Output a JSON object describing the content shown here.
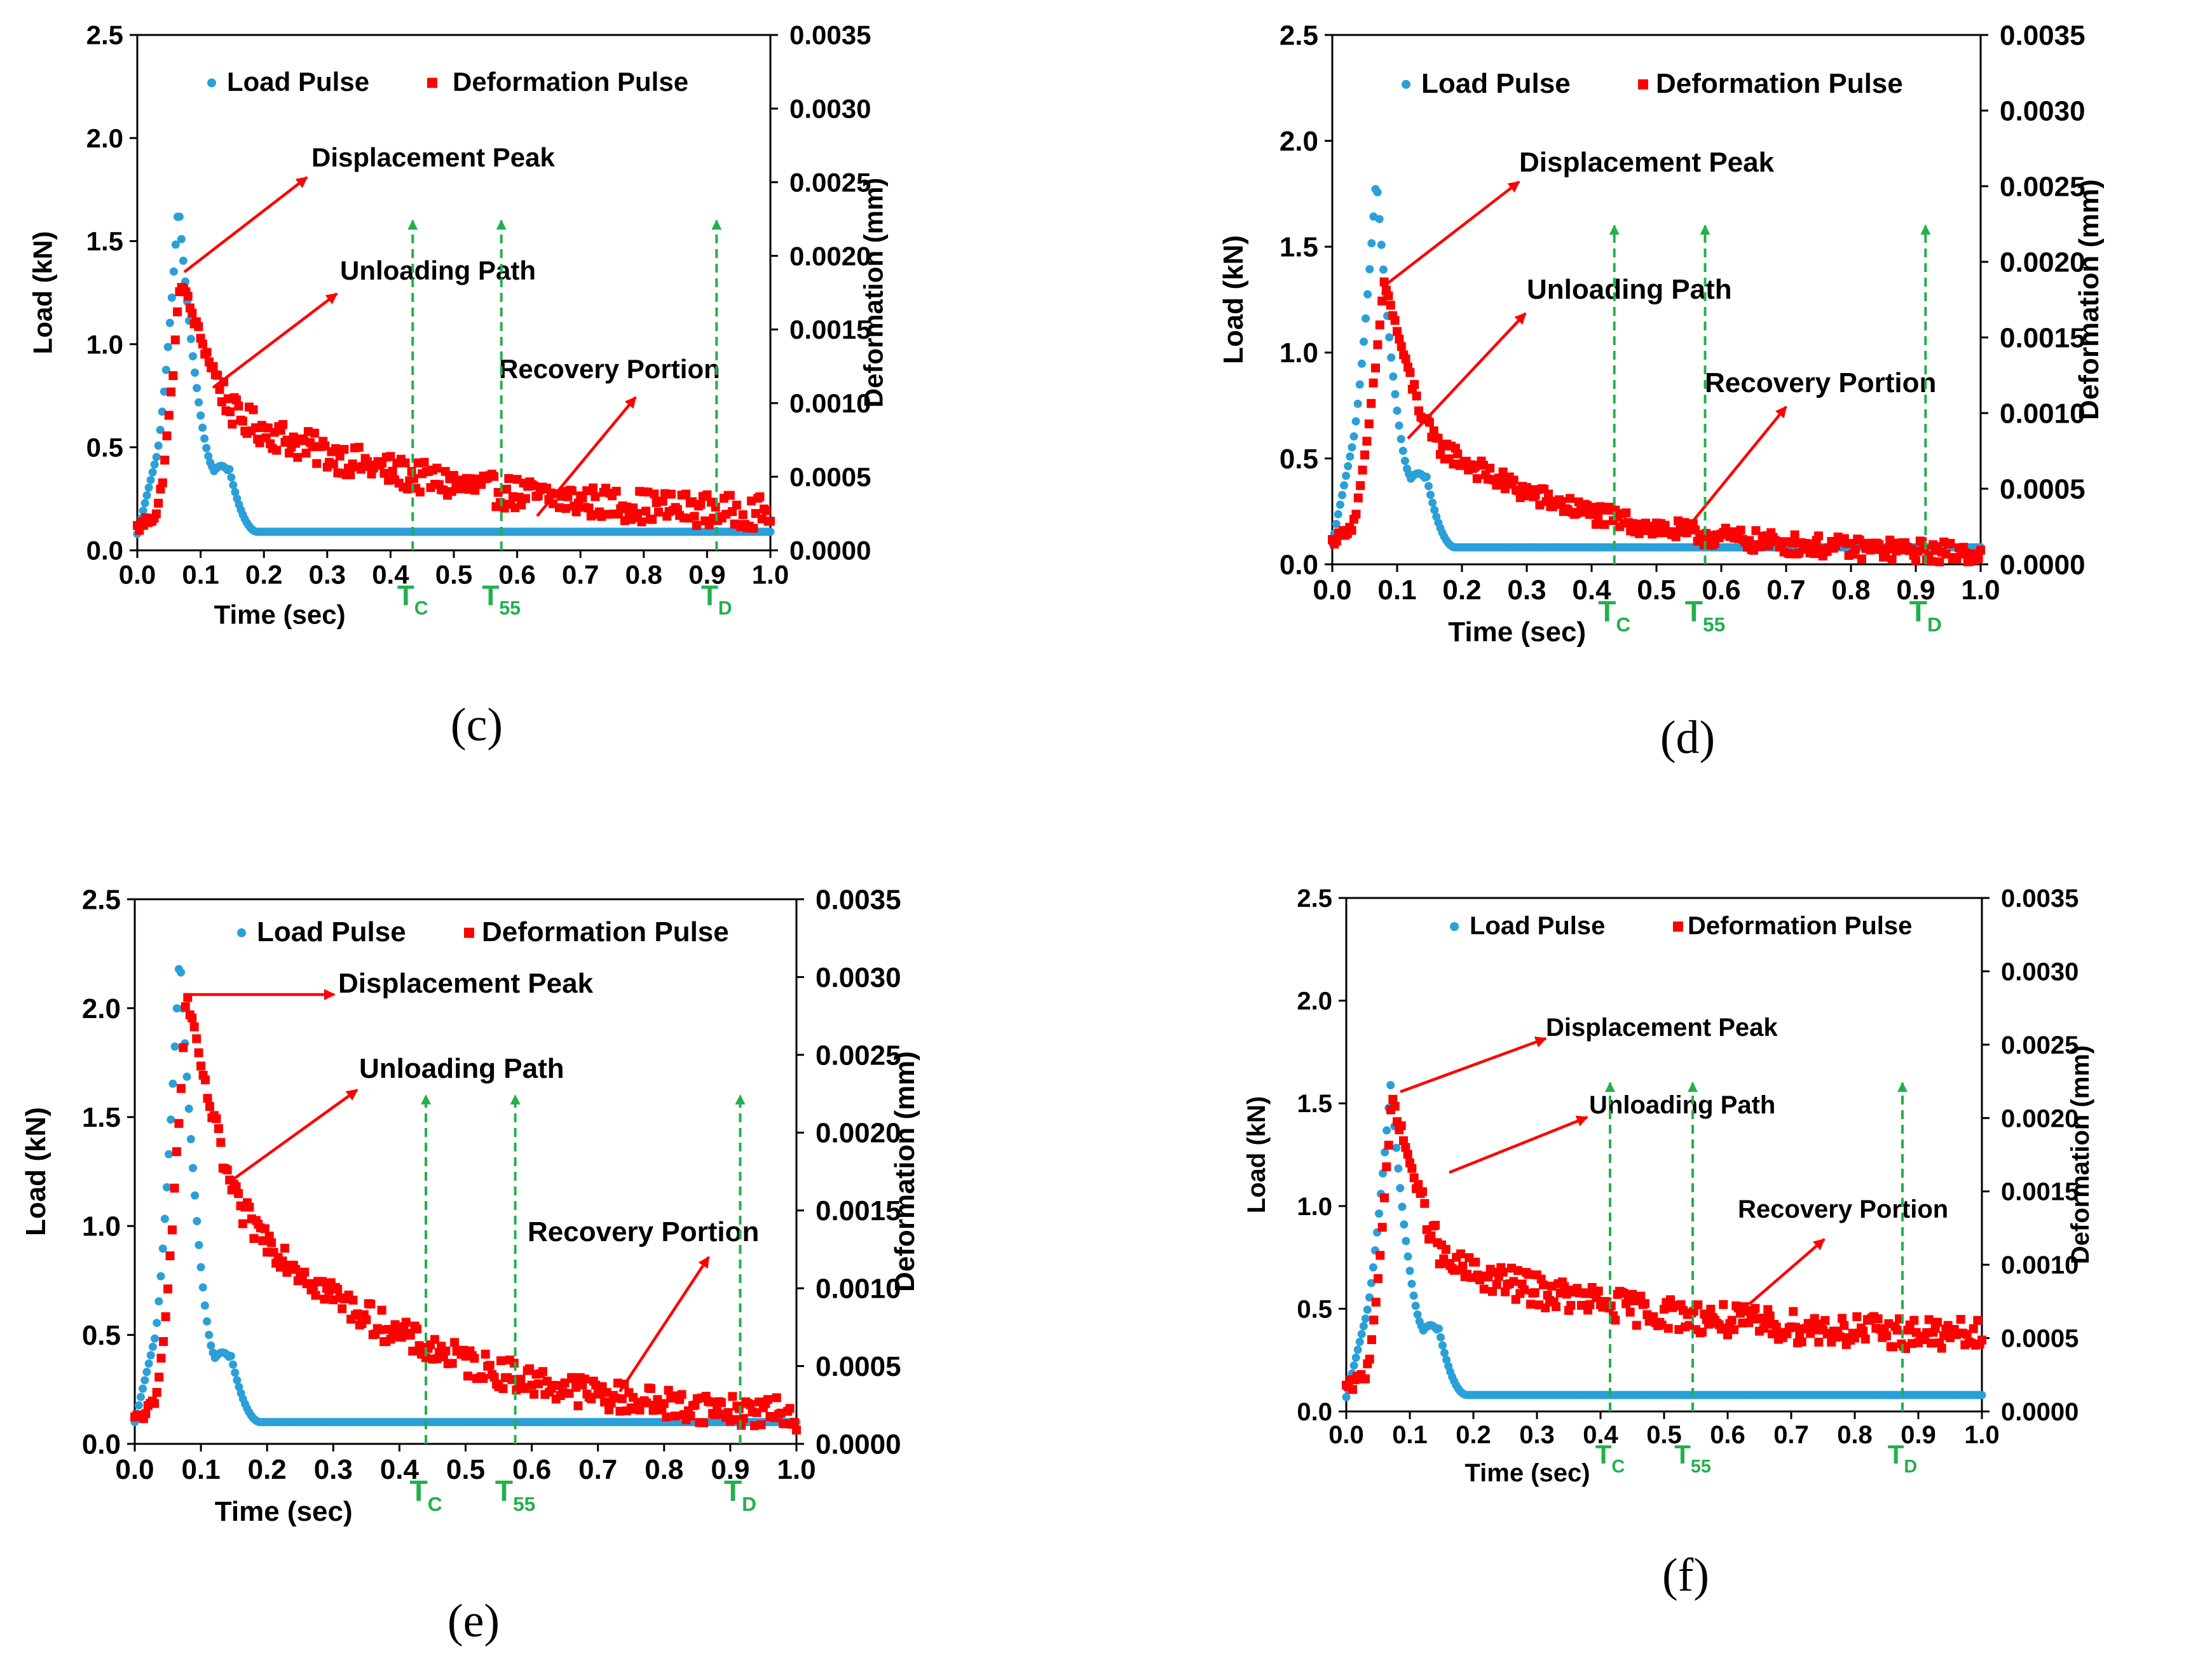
{
  "colors": {
    "load": "#2a9fd8",
    "deformation": "#ff0000",
    "marker": "#22b04b",
    "arrow": "#ff0000",
    "axis": "#000000"
  },
  "legend": {
    "load": "Load Pulse",
    "deformation": "Deformation Pulse"
  },
  "chart_data": [
    {
      "type": "scatter",
      "caption": "(c)",
      "xlabel": "Time (sec)",
      "ylabel": "Load (kN)",
      "y2label": "Deformation (mm)",
      "xlim": [
        0,
        1
      ],
      "ylim": [
        0,
        2.5
      ],
      "y2lim": [
        0,
        0.0035
      ],
      "xticks": [
        "0.0",
        "0.1",
        "0.2",
        "0.3",
        "0.4",
        "0.5",
        "0.6",
        "0.7",
        "0.8",
        "0.9",
        "1.0"
      ],
      "yticks": [
        "0.0",
        "0.5",
        "1.0",
        "1.5",
        "2.0",
        "2.5"
      ],
      "y2ticks": [
        "0.0000",
        "0.0005",
        "0.0010",
        "0.0015",
        "0.0020",
        "0.0025",
        "0.0030",
        "0.0035"
      ],
      "annotations": {
        "peak": "Displacement Peak",
        "unload": "Unloading Path",
        "recovery": "Recovery Portion"
      },
      "markers": [
        {
          "label": "T",
          "sub": "C",
          "x": 0.435
        },
        {
          "label": "T",
          "sub": "55",
          "x": 0.575
        },
        {
          "label": "T",
          "sub": "D",
          "x": 0.915
        }
      ],
      "series": [
        {
          "name": "Load Pulse",
          "params": {
            "base": 0.08,
            "pre": 0.45,
            "peak": 1.68,
            "tpeak": 0.065,
            "shoulder": 0.4,
            "tail": 0.09
          }
        },
        {
          "name": "Deformation Pulse",
          "params": {
            "peak": 0.00185,
            "tpeak": 0.068,
            "tail": 0.0002,
            "knee": 0.0009,
            "tau": 0.33,
            "noise": 0.00011
          }
        }
      ]
    },
    {
      "type": "scatter",
      "caption": "(d)",
      "xlabel": "Time (sec)",
      "ylabel": "Load (kN)",
      "y2label": "Deformation (mm)",
      "xlim": [
        0,
        1
      ],
      "ylim": [
        0,
        2.5
      ],
      "y2lim": [
        0,
        0.0035
      ],
      "xticks": [
        "0.0",
        "0.1",
        "0.2",
        "0.3",
        "0.4",
        "0.5",
        "0.6",
        "0.7",
        "0.8",
        "0.9",
        "1.0"
      ],
      "yticks": [
        "0.0",
        "0.5",
        "1.0",
        "1.5",
        "2.0",
        "2.5"
      ],
      "y2ticks": [
        "0.0000",
        "0.0005",
        "0.0010",
        "0.0015",
        "0.0020",
        "0.0025",
        "0.0030",
        "0.0035"
      ],
      "annotations": {
        "peak": "Displacement Peak",
        "unload": "Unloading Path",
        "recovery": "Recovery Portion"
      },
      "markers": [
        {
          "label": "T",
          "sub": "C",
          "x": 0.435
        },
        {
          "label": "T",
          "sub": "55",
          "x": 0.575
        },
        {
          "label": "T",
          "sub": "D",
          "x": 0.915
        }
      ],
      "series": [
        {
          "name": "Load Pulse",
          "params": {
            "base": 0.1,
            "pre": 0.55,
            "peak": 1.83,
            "tpeak": 0.068,
            "shoulder": 0.42,
            "tail": 0.08
          }
        },
        {
          "name": "Deformation Pulse",
          "params": {
            "peak": 0.00188,
            "tpeak": 0.08,
            "tail": 5e-05,
            "knee": 0.0008,
            "tau": 0.25,
            "noise": 7e-05
          }
        }
      ]
    },
    {
      "type": "scatter",
      "caption": "(e)",
      "xlabel": "Time (sec)",
      "ylabel": "Load (kN)",
      "y2label": "Deformation (mm)",
      "xlim": [
        0,
        1
      ],
      "ylim": [
        0,
        2.5
      ],
      "y2lim": [
        0,
        0.0035
      ],
      "xticks": [
        "0.0",
        "0.1",
        "0.2",
        "0.3",
        "0.4",
        "0.5",
        "0.6",
        "0.7",
        "0.8",
        "0.9",
        "1.0"
      ],
      "yticks": [
        "0.0",
        "0.5",
        "1.0",
        "1.5",
        "2.0",
        "2.5"
      ],
      "y2ticks": [
        "0.0000",
        "0.0005",
        "0.0010",
        "0.0015",
        "0.0020",
        "0.0025",
        "0.0030",
        "0.0035"
      ],
      "annotations": {
        "peak": "Displacement Peak",
        "unload": "Unloading Path",
        "recovery": "Recovery Portion"
      },
      "markers": [
        {
          "label": "T",
          "sub": "C",
          "x": 0.44
        },
        {
          "label": "T",
          "sub": "55",
          "x": 0.575
        },
        {
          "label": "T",
          "sub": "D",
          "x": 0.915
        }
      ],
      "series": [
        {
          "name": "Load Pulse",
          "params": {
            "base": 0.1,
            "pre": 0.48,
            "peak": 2.26,
            "tpeak": 0.068,
            "shoulder": 0.41,
            "tail": 0.1
          }
        },
        {
          "name": "Deformation Pulse",
          "params": {
            "peak": 0.0029,
            "tpeak": 0.078,
            "tail": 0.00012,
            "knee": 0.0015,
            "tau": 0.28,
            "noise": 0.0001
          }
        }
      ]
    },
    {
      "type": "scatter",
      "caption": "(f)",
      "xlabel": "Time (sec)",
      "ylabel": "Load (kN)",
      "y2label": "Deformation (mm)",
      "xlim": [
        0,
        1
      ],
      "ylim": [
        0,
        2.5
      ],
      "y2lim": [
        0,
        0.0035
      ],
      "xticks": [
        "0.0",
        "0.1",
        "0.2",
        "0.3",
        "0.4",
        "0.5",
        "0.6",
        "0.7",
        "0.8",
        "0.9",
        "1.0"
      ],
      "yticks": [
        "0.0",
        "0.5",
        "1.0",
        "1.5",
        "2.0",
        "2.5"
      ],
      "y2ticks": [
        "0.0000",
        "0.0005",
        "0.0010",
        "0.0015",
        "0.0020",
        "0.0025",
        "0.0030",
        "0.0035"
      ],
      "annotations": {
        "peak": "Displacement Peak",
        "unload": "Unloading Path",
        "recovery": "Recovery Portion"
      },
      "markers": [
        {
          "label": "T",
          "sub": "C",
          "x": 0.415
        },
        {
          "label": "T",
          "sub": "55",
          "x": 0.545
        },
        {
          "label": "T",
          "sub": "D",
          "x": 0.875
        }
      ],
      "series": [
        {
          "name": "Load Pulse",
          "params": {
            "base": 0.07,
            "pre": 0.45,
            "peak": 1.6,
            "tpeak": 0.07,
            "shoulder": 0.41,
            "tail": 0.08
          }
        },
        {
          "name": "Deformation Pulse",
          "params": {
            "peak": 0.00215,
            "tpeak": 0.072,
            "tail": 0.00046,
            "knee": 0.001,
            "tau": 0.36,
            "noise": 0.00011
          }
        }
      ]
    }
  ]
}
